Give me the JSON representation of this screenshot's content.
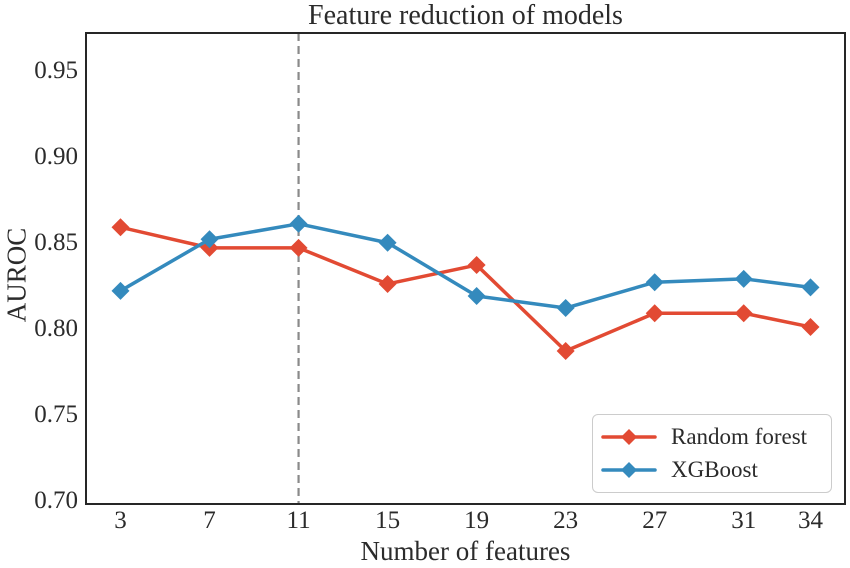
{
  "chart_data": {
    "type": "line",
    "title": "Feature reduction of models",
    "xlabel": "Number of features",
    "ylabel": "AUROC",
    "x": [
      3,
      7,
      11,
      15,
      19,
      23,
      27,
      31,
      34
    ],
    "series": [
      {
        "name": "Random forest",
        "color": "#E24A33",
        "marker": "diamond",
        "values": [
          0.859,
          0.847,
          0.847,
          0.826,
          0.837,
          0.787,
          0.809,
          0.809,
          0.801
        ]
      },
      {
        "name": "XGBoost",
        "color": "#348ABD",
        "marker": "diamond",
        "values": [
          0.822,
          0.852,
          0.861,
          0.85,
          0.819,
          0.812,
          0.827,
          0.829,
          0.824
        ]
      }
    ],
    "xticks": [
      "3",
      "7",
      "11",
      "15",
      "19",
      "23",
      "27",
      "31",
      "34"
    ],
    "yticks": [
      0.7,
      0.75,
      0.8,
      0.85,
      0.9,
      0.95
    ],
    "ytick_labels": [
      "0.70",
      "0.75",
      "0.80",
      "0.85",
      "0.90",
      "0.95"
    ],
    "xlim": [
      1.45,
      35.55
    ],
    "ylim": [
      0.698,
      0.972
    ],
    "grid": false,
    "vline": {
      "x": 11,
      "style": "dashed",
      "color": "#8a8a8a"
    },
    "legend": {
      "position": "lower right",
      "entries": [
        "Random forest",
        "XGBoost"
      ]
    },
    "colors": {
      "axis": "#262626",
      "text": "#2b2b2b",
      "dashed_line": "#8a8a8a",
      "legend_border": "#cccccc"
    }
  }
}
